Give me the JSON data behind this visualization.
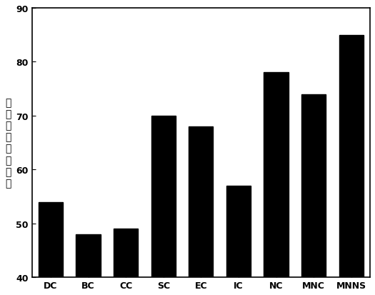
{
  "categories": [
    "DC",
    "BC",
    "CC",
    "SC",
    "EC",
    "IC",
    "NC",
    "MNC",
    "MNNS"
  ],
  "values": [
    54,
    48,
    49,
    70,
    68,
    57,
    78,
    74,
    85
  ],
  "bar_color": "#000000",
  "title": "",
  "ylabel_chars": [
    "关",
    "键",
    "蛋",
    "白",
    "识",
    "别",
    "数",
    "目"
  ],
  "ylim": [
    40,
    90
  ],
  "yticks": [
    40,
    50,
    60,
    70,
    80,
    90
  ],
  "background_color": "#ffffff",
  "bar_width": 0.65,
  "ylabel_fontsize": 10,
  "tick_fontsize": 9,
  "xlabel_fontsize": 9
}
